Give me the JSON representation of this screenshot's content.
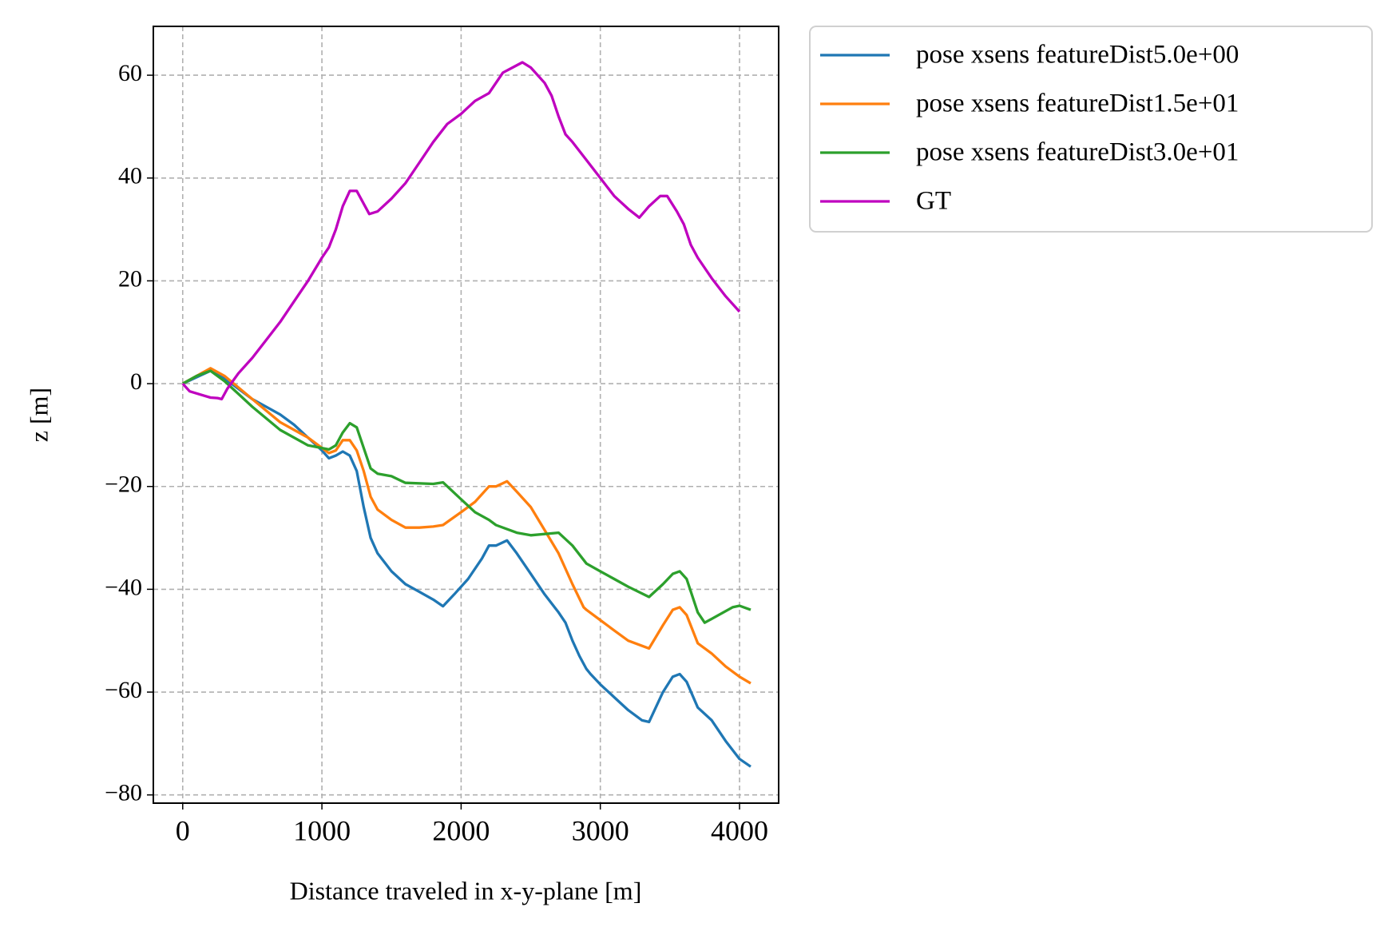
{
  "chart_data": {
    "type": "line",
    "xlabel": "Distance traveled in x-y-plane [m]",
    "ylabel": "z [m]",
    "xlim": [
      -211,
      4281
    ],
    "ylim": [
      -81.6,
      69.5
    ],
    "xticks": [
      0,
      1000,
      2000,
      3000,
      4000
    ],
    "yticks": [
      {
        "value": -80,
        "label": "−80"
      },
      {
        "value": -60,
        "label": "−60"
      },
      {
        "value": -40,
        "label": "−40"
      },
      {
        "value": -20,
        "label": "−20"
      },
      0,
      20,
      40,
      60
    ],
    "grid": true,
    "legend": "outside upper right",
    "series": [
      {
        "name": "pose xsens featureDist5.0e+00",
        "color": "#1f77b4",
        "x": [
          0,
          200,
          300,
          500,
          700,
          800,
          1000,
          1050,
          1100,
          1150,
          1200,
          1250,
          1300,
          1350,
          1400,
          1500,
          1600,
          1700,
          1800,
          1870,
          1950,
          2050,
          2150,
          2200,
          2250,
          2330,
          2400,
          2500,
          2600,
          2700,
          2750,
          2800,
          2850,
          2900,
          2930,
          3000,
          3100,
          3200,
          3300,
          3350,
          3450,
          3520,
          3570,
          3620,
          3700,
          3800,
          3900,
          4000,
          4080
        ],
        "values": [
          0,
          2.5,
          1,
          -3,
          -6,
          -8,
          -13,
          -14.5,
          -14,
          -13.2,
          -14,
          -17,
          -24,
          -30,
          -33,
          -36.5,
          -39,
          -40.5,
          -42,
          -43.3,
          -41,
          -38,
          -34,
          -31.5,
          -31.5,
          -30.5,
          -33,
          -37,
          -41,
          -44.5,
          -46.5,
          -50,
          -53,
          -55.5,
          -56.5,
          -58.5,
          -61,
          -63.5,
          -65.5,
          -65.8,
          -60,
          -57,
          -56.5,
          -58,
          -63,
          -65.5,
          -69.5,
          -73,
          -74.5
        ]
      },
      {
        "name": "pose xsens featureDist1.5e+01",
        "color": "#ff7f0e",
        "x": [
          0,
          100,
          200,
          300,
          500,
          700,
          900,
          1050,
          1100,
          1150,
          1200,
          1250,
          1300,
          1350,
          1400,
          1500,
          1600,
          1700,
          1800,
          1870,
          2000,
          2100,
          2200,
          2250,
          2330,
          2400,
          2500,
          2600,
          2700,
          2800,
          2880,
          2900,
          3000,
          3100,
          3200,
          3350,
          3450,
          3520,
          3570,
          3620,
          3700,
          3800,
          3900,
          4000,
          4080
        ],
        "values": [
          0,
          1.5,
          3,
          1.5,
          -3,
          -7.5,
          -10.5,
          -13.5,
          -13,
          -11,
          -11,
          -13,
          -17,
          -22,
          -24.5,
          -26.5,
          -28,
          -28,
          -27.8,
          -27.5,
          -25,
          -23,
          -20,
          -20,
          -19,
          -21,
          -24,
          -28.5,
          -33,
          -39,
          -43.5,
          -44,
          -46,
          -48,
          -50,
          -51.5,
          -47,
          -44,
          -43.5,
          -45,
          -50.5,
          -52.5,
          -55,
          -57,
          -58.3
        ]
      },
      {
        "name": "pose xsens featureDist3.0e+01",
        "color": "#2ca02c",
        "x": [
          0,
          100,
          200,
          300,
          400,
          500,
          700,
          900,
          1050,
          1100,
          1150,
          1200,
          1250,
          1300,
          1350,
          1400,
          1500,
          1600,
          1800,
          1870,
          2000,
          2100,
          2200,
          2250,
          2400,
          2500,
          2700,
          2800,
          2900,
          3000,
          3100,
          3200,
          3350,
          3450,
          3520,
          3570,
          3620,
          3700,
          3750,
          3850,
          3950,
          4000,
          4080
        ],
        "values": [
          0,
          1.5,
          2.5,
          0.5,
          -2,
          -4.5,
          -9,
          -12,
          -12.8,
          -12,
          -9.5,
          -7.7,
          -8.5,
          -12.5,
          -16.5,
          -17.5,
          -18,
          -19.3,
          -19.5,
          -19.2,
          -22.5,
          -25,
          -26.5,
          -27.5,
          -29,
          -29.5,
          -29,
          -31.5,
          -35,
          -36.5,
          -38,
          -39.5,
          -41.5,
          -39,
          -37,
          -36.5,
          -38,
          -44.5,
          -46.5,
          -45,
          -43.5,
          -43.2,
          -44
        ]
      },
      {
        "name": "GT",
        "color": "#bf00bf",
        "x": [
          0,
          50,
          150,
          200,
          250,
          280,
          320,
          400,
          500,
          600,
          700,
          800,
          900,
          1000,
          1050,
          1100,
          1150,
          1200,
          1250,
          1300,
          1340,
          1400,
          1500,
          1600,
          1700,
          1800,
          1900,
          2000,
          2100,
          2200,
          2300,
          2440,
          2500,
          2600,
          2650,
          2700,
          2750,
          2800,
          2900,
          3000,
          3100,
          3200,
          3280,
          3350,
          3430,
          3480,
          3550,
          3600,
          3650,
          3700,
          3800,
          3900,
          4000
        ],
        "values": [
          0,
          -1.5,
          -2.3,
          -2.7,
          -2.8,
          -3,
          -1,
          2,
          5,
          8.5,
          12,
          16,
          20,
          24.5,
          26.5,
          30,
          34.5,
          37.5,
          37.5,
          35,
          33,
          33.5,
          36,
          39,
          43,
          47,
          50.5,
          52.5,
          55,
          56.5,
          60.5,
          62.5,
          61.5,
          58.5,
          56,
          52,
          48.5,
          47,
          43.5,
          40,
          36.5,
          34,
          32.3,
          34.5,
          36.5,
          36.5,
          33.5,
          31,
          27,
          24.5,
          20.5,
          17,
          14
        ]
      }
    ]
  }
}
